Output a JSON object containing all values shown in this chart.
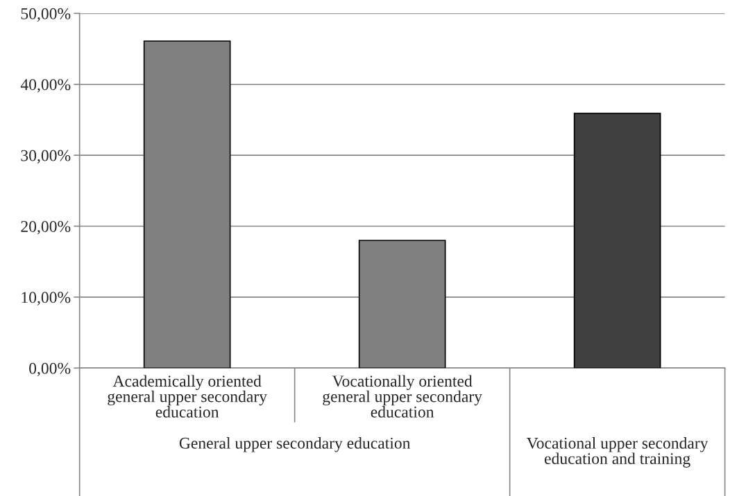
{
  "chart_data": {
    "type": "bar",
    "categories": [
      "Academically oriented\ngeneral upper secondary\neducation",
      "Vocationally oriented\ngeneral upper secondary\neducation",
      null
    ],
    "values": [
      46.1,
      18.0,
      35.9
    ],
    "colors": [
      "#808080",
      "#808080",
      "#404040"
    ],
    "ylim": [
      0,
      50
    ],
    "yticks": [
      {
        "value": 0,
        "label": "0,00%"
      },
      {
        "value": 10,
        "label": "10,00%"
      },
      {
        "value": 20,
        "label": "20,00%"
      },
      {
        "value": 30,
        "label": "30,00%"
      },
      {
        "value": 40,
        "label": "40,00%"
      },
      {
        "value": 50,
        "label": "50,00%"
      }
    ],
    "grid": "y",
    "annotations": [
      "General upper secondary education",
      "Vocational upper secondary\neducation and training"
    ]
  }
}
